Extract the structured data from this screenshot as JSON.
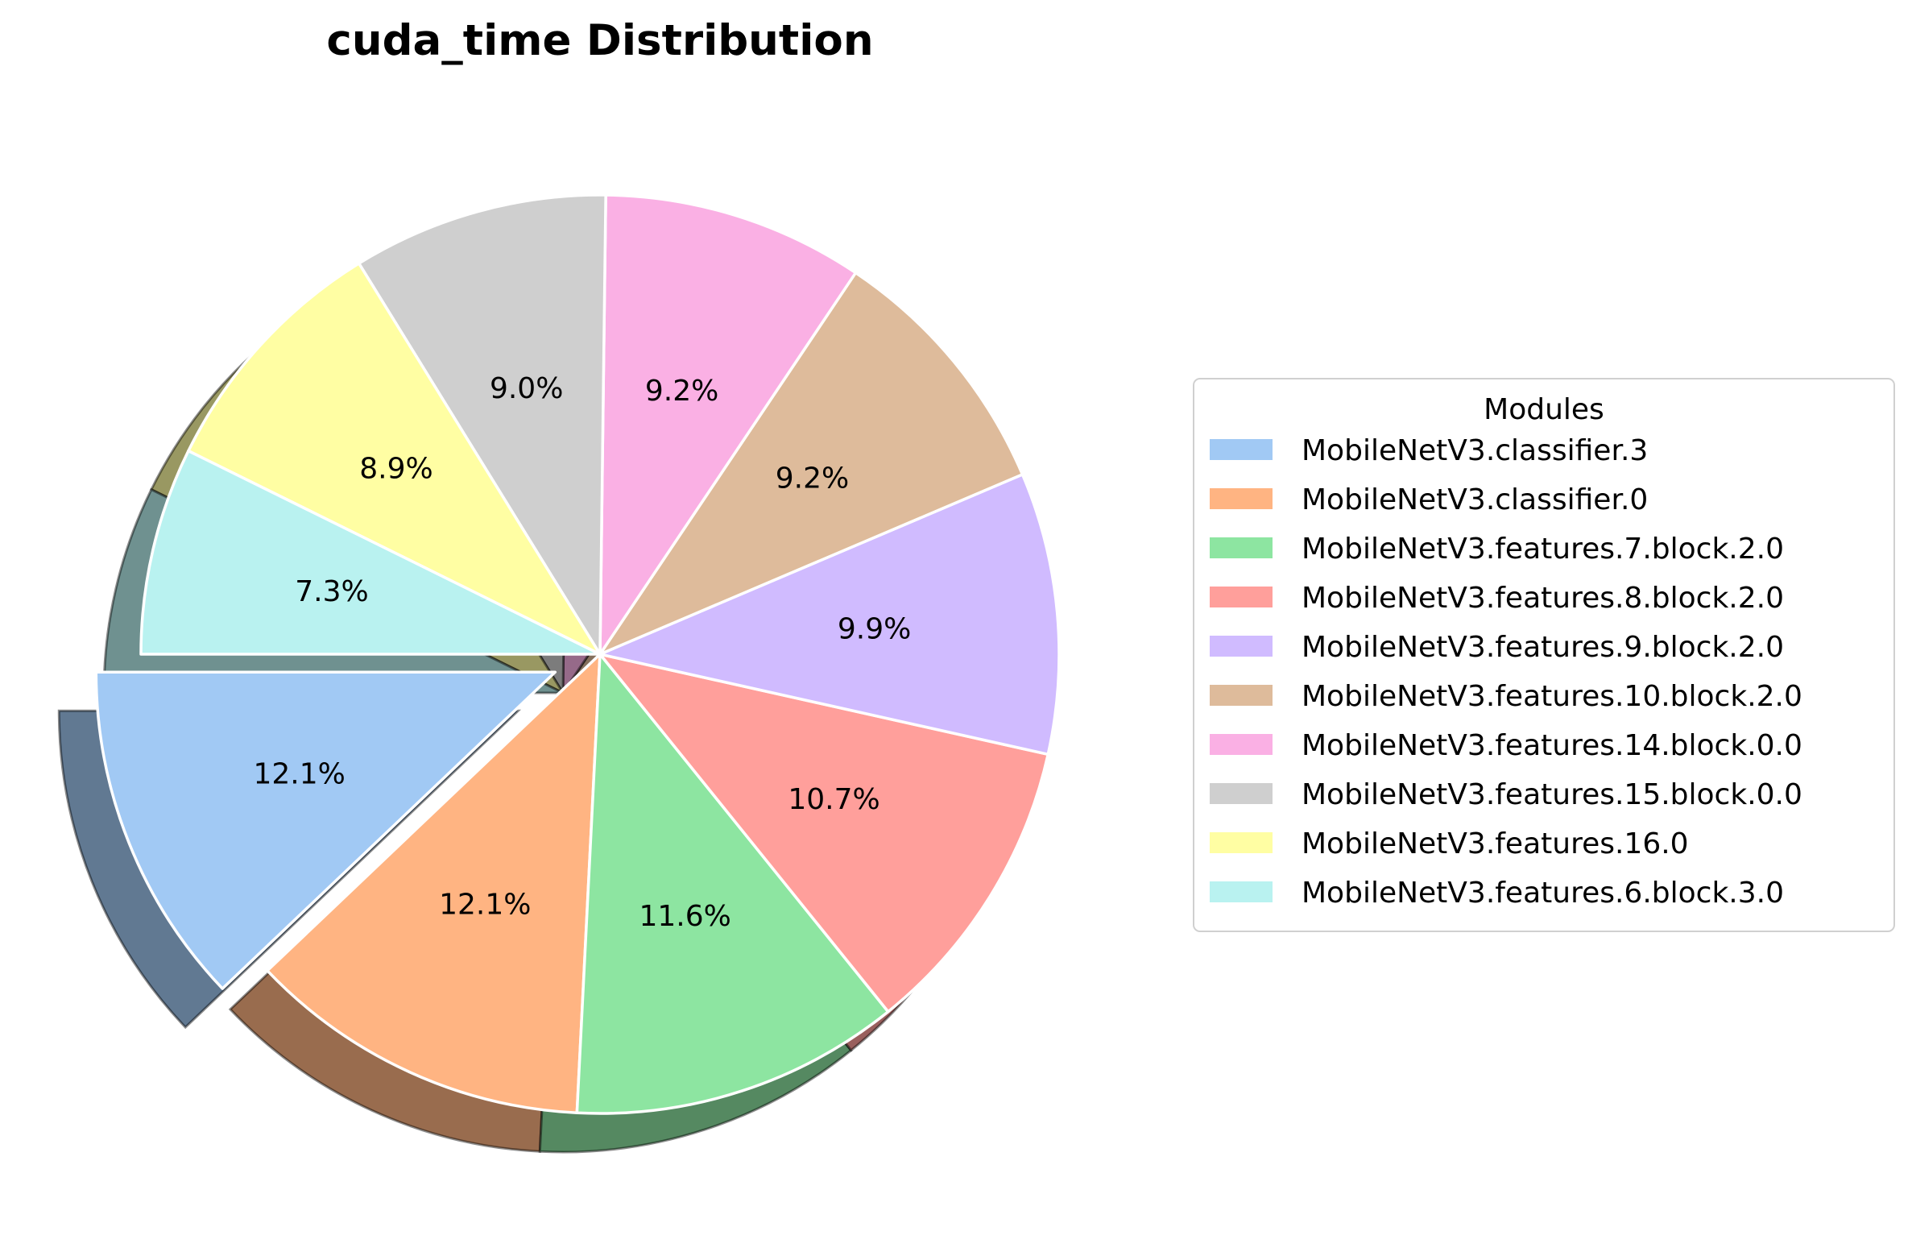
{
  "chart_data": {
    "type": "pie",
    "title": "cuda_time Distribution",
    "legend_title": "Modules",
    "legend_position": "right",
    "start_angle_deg": 180,
    "direction": "counterclockwise",
    "shadow": true,
    "exploded_slice": "MobileNetV3.classifier.3",
    "slices": [
      {
        "label": "MobileNetV3.classifier.3",
        "value": 12.1,
        "display": "12.1%",
        "color": "#A1C9F4"
      },
      {
        "label": "MobileNetV3.classifier.0",
        "value": 12.1,
        "display": "12.1%",
        "color": "#FFB482"
      },
      {
        "label": "MobileNetV3.features.7.block.2.0",
        "value": 11.6,
        "display": "11.6%",
        "color": "#8DE5A1"
      },
      {
        "label": "MobileNetV3.features.8.block.2.0",
        "value": 10.7,
        "display": "10.7%",
        "color": "#FF9F9B"
      },
      {
        "label": "MobileNetV3.features.9.block.2.0",
        "value": 9.9,
        "display": "9.9%",
        "color": "#D0BBFF"
      },
      {
        "label": "MobileNetV3.features.10.block.2.0",
        "value": 9.2,
        "display": "9.2%",
        "color": "#DEBB9B"
      },
      {
        "label": "MobileNetV3.features.14.block.0.0",
        "value": 9.2,
        "display": "9.2%",
        "color": "#FAB0E4"
      },
      {
        "label": "MobileNetV3.features.15.block.0.0",
        "value": 9.0,
        "display": "9.0%",
        "color": "#CFCFCF"
      },
      {
        "label": "MobileNetV3.features.16.0",
        "value": 8.9,
        "display": "8.9%",
        "color": "#FFFEA3"
      },
      {
        "label": "MobileNetV3.features.6.block.3.0",
        "value": 7.3,
        "display": "7.3%",
        "color": "#B9F2F0"
      }
    ]
  }
}
